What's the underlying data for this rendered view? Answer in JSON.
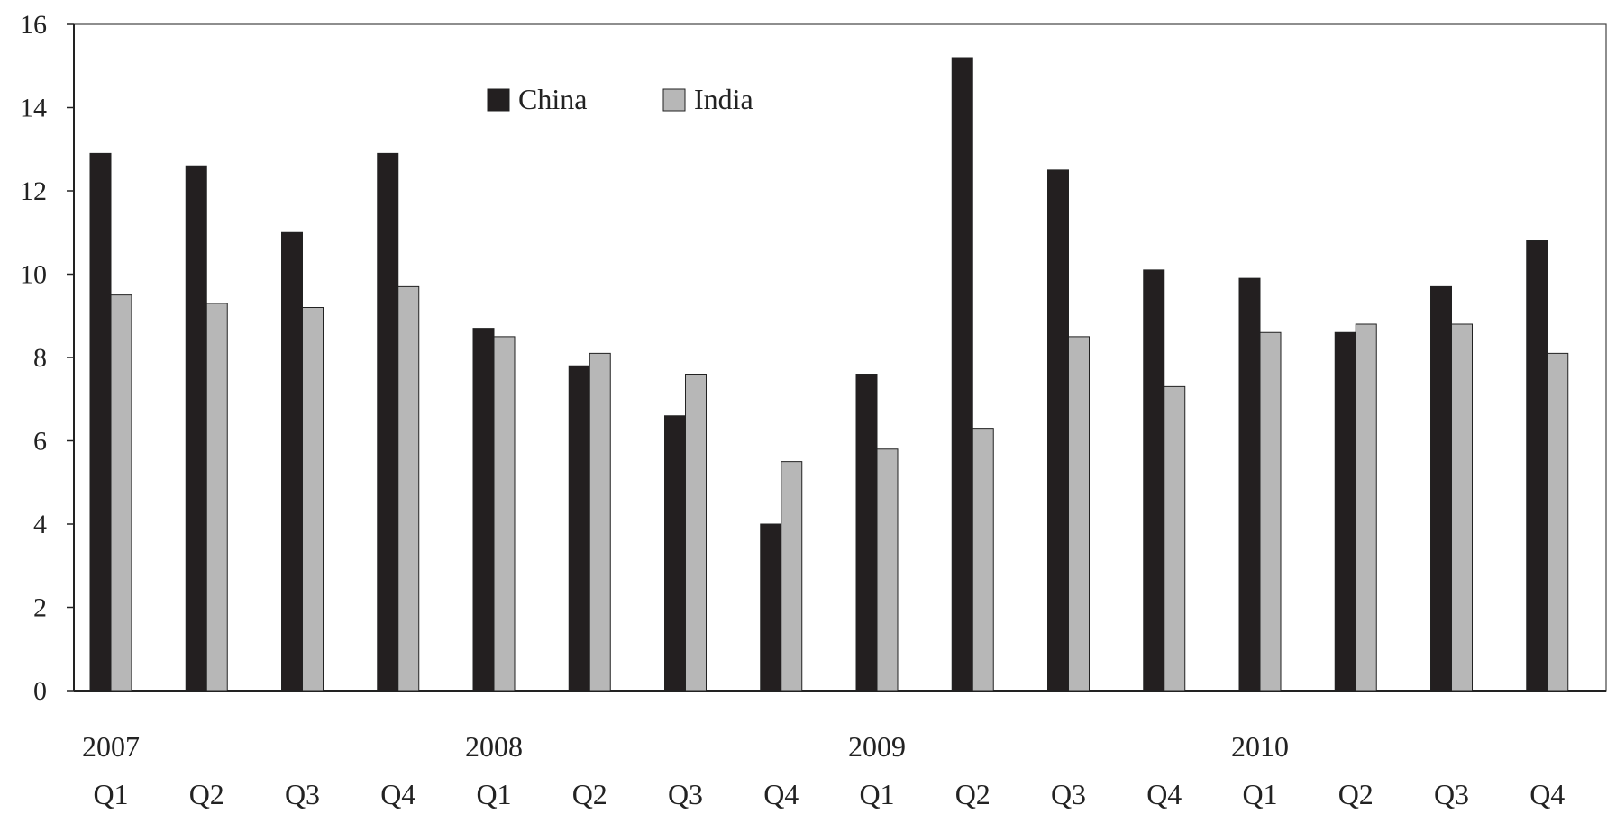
{
  "chart_data": {
    "type": "bar",
    "title": "",
    "xlabel": "",
    "ylabel": "",
    "ylim": [
      0,
      16
    ],
    "yticks": [
      "0",
      "2",
      "4",
      "6",
      "8",
      "10",
      "12",
      "14",
      "16"
    ],
    "grid": false,
    "legend_position": "top-left",
    "categories": [
      "Q1",
      "Q2",
      "Q3",
      "Q4",
      "Q1",
      "Q2",
      "Q3",
      "Q4",
      "Q1",
      "Q2",
      "Q3",
      "Q4",
      "Q1",
      "Q2",
      "Q3",
      "Q4"
    ],
    "years": [
      {
        "label": "2007",
        "category_index": 0
      },
      {
        "label": "2008",
        "category_index": 4
      },
      {
        "label": "2009",
        "category_index": 8
      },
      {
        "label": "2010",
        "category_index": 12
      }
    ],
    "series": [
      {
        "name": "China",
        "color": "#231f20",
        "values": [
          12.9,
          12.6,
          11.0,
          12.9,
          8.7,
          7.8,
          6.6,
          4.0,
          7.6,
          15.2,
          12.5,
          10.1,
          9.9,
          8.6,
          9.7,
          10.8
        ]
      },
      {
        "name": "India",
        "color": "#b7b7b7",
        "values": [
          9.5,
          9.3,
          9.2,
          9.7,
          8.5,
          8.1,
          7.6,
          5.5,
          5.8,
          6.3,
          8.5,
          7.3,
          8.6,
          8.8,
          8.8,
          8.1
        ]
      }
    ]
  }
}
